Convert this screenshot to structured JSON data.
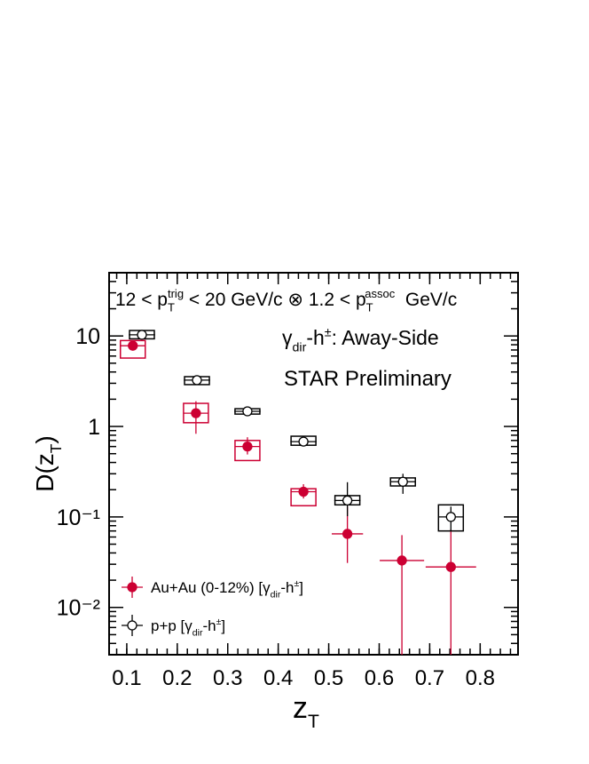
{
  "chart_data": {
    "type": "scatter",
    "log_y": true,
    "xlim": [
      0.065,
      0.875
    ],
    "ylim": [
      0.003,
      50
    ],
    "xticks": [
      0.1,
      0.2,
      0.3,
      0.4,
      0.5,
      0.6,
      0.7,
      0.8
    ],
    "yticks": [
      {
        "value": 0.01,
        "label": "10⁻²"
      },
      {
        "value": 0.1,
        "label": "10⁻¹"
      },
      1,
      10
    ],
    "x_label": [
      {
        "text": "z"
      },
      {
        "sub": "T"
      }
    ],
    "y_label": [
      {
        "text": "D(z"
      },
      {
        "sub": "T"
      },
      {
        "text": ")"
      }
    ],
    "annotations": [
      [
        {
          "text": "12 < p"
        },
        {
          "sub": "T",
          "sup": "trig"
        },
        {
          "text": " < 20 GeV/c ⊗ 1.2 < p"
        },
        {
          "sub": "T",
          "sup": "assoc"
        },
        {
          "text": "  GeV/c"
        }
      ],
      [
        {
          "text": "γ"
        },
        {
          "sub": "dir"
        },
        {
          "text": "-h"
        },
        {
          "sup": "±"
        },
        {
          "text": ": Away-Side"
        }
      ],
      [
        {
          "text": "STAR Preliminary"
        }
      ]
    ],
    "legend": "bottom-left",
    "series": [
      {
        "name": [
          {
            "text": "Au+Au (0-12%) [γ"
          },
          {
            "sub": "dir"
          },
          {
            "text": "-h"
          },
          {
            "sup": "±"
          },
          {
            "text": "]"
          }
        ],
        "color": "#cc0033",
        "marker": "filled",
        "x": [
          0.112,
          0.237,
          0.339,
          0.45,
          0.537,
          0.645,
          0.742
        ],
        "values": [
          7.8,
          1.4,
          0.6,
          0.19,
          0.065,
          0.033,
          0.028
        ],
        "xerr": [
          0.025,
          0.025,
          0.025,
          0.025,
          0.031,
          0.044,
          0.05
        ],
        "yerr_lo": [
          0.6,
          0.57,
          0.11,
          0.03,
          0.034,
          0.033,
          0.028
        ],
        "yerr_hi": [
          0.6,
          0.5,
          0.16,
          0.04,
          0.065,
          0.03,
          0.045
        ],
        "sys_lo": [
          2.1,
          0.3,
          0.18,
          0.057,
          null,
          null,
          null
        ],
        "sys_hi": [
          1.1,
          0.4,
          0.1,
          0.015,
          null,
          null,
          null
        ]
      },
      {
        "name": [
          {
            "text": "p+p [γ"
          },
          {
            "sub": "dir"
          },
          {
            "text": "-h"
          },
          {
            "sup": "±"
          },
          {
            "text": "]"
          }
        ],
        "color": "#000000",
        "marker": "open",
        "x": [
          0.13,
          0.239,
          0.339,
          0.45,
          0.537,
          0.647,
          0.742
        ],
        "values": [
          10.3,
          3.25,
          1.47,
          0.68,
          0.152,
          0.245,
          0.1
        ],
        "xerr": [
          0.026,
          0.026,
          0.026,
          0.026,
          0.026,
          0.024,
          0.025
        ],
        "yerr_lo": [
          0.4,
          0.15,
          0.05,
          0.04,
          0.05,
          0.065,
          0.03
        ],
        "yerr_hi": [
          0.4,
          0.15,
          0.05,
          0.04,
          0.09,
          0.055,
          0.03
        ],
        "sys_lo": [
          1.0,
          0.35,
          0.1,
          0.06,
          0.016,
          0.025,
          0.03
        ],
        "sys_hi": [
          1.2,
          0.3,
          0.1,
          0.1,
          0.02,
          0.025,
          0.036
        ]
      }
    ]
  }
}
